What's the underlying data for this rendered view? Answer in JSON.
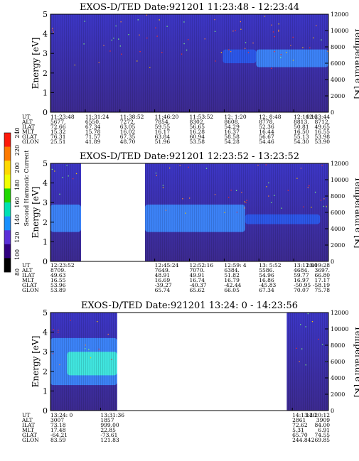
{
  "colors": {
    "background_high": "#3c36c6",
    "background_low": "#3c2a90",
    "band": "#2a5cf0",
    "band_strong": "#3c8cff",
    "band_hot": "#40f0dc",
    "gap": "#ffffff"
  },
  "colorbar": {
    "label": "Second Harmonic Current",
    "ticks": [
      "240",
      "220",
      "200",
      "180",
      "160",
      "140",
      "120",
      "100",
      "80"
    ],
    "colors": [
      "#ff1a0a",
      "#ff7a00",
      "#ffd800",
      "#f0ff00",
      "#20d800",
      "#00e0b4",
      "#1890ff",
      "#5a2fd8",
      "#300080",
      "#000000"
    ]
  },
  "chart_data": [
    {
      "type": "heatmap",
      "title": "EXOS-D/TED   Date:921201   11:23:48 - 12:23:44",
      "ylabel": "Energy [eV]",
      "y2label": "Temperature [K]",
      "ylim": [
        0,
        5
      ],
      "y2lim": [
        0,
        12000
      ],
      "yticks": [
        "0",
        "1",
        "2",
        "3",
        "4",
        "5"
      ],
      "y2ticks": [
        "0",
        "2000",
        "4000",
        "6000",
        "8000",
        "10000",
        "12000"
      ],
      "bands": [
        {
          "x_start": 0.62,
          "x_end": 0.74,
          "y_low": 2.5,
          "y_high": 3.2,
          "level": 1
        },
        {
          "x_start": 0.74,
          "x_end": 1.0,
          "y_low": 2.3,
          "y_high": 3.2,
          "level": 2
        }
      ],
      "gaps": [],
      "table": {
        "labels": [
          "UT",
          "ALT",
          "ILAT",
          "MLT",
          "GLAT",
          "GLON"
        ],
        "columns": [
          {
            "x": 0.0,
            "values": [
              "11:23:48",
              "5677.",
              "72.66",
              "15.32",
              "76.31",
              "25.51"
            ]
          },
          {
            "x": 0.125,
            "values": [
              "11:31:24",
              "6550.",
              "67.34",
              "15.78",
              "71.57",
              "41.89"
            ]
          },
          {
            "x": 0.25,
            "values": [
              "11:38:52",
              "7272.",
              "63.05",
              "16.02",
              "67.35",
              "48.70"
            ]
          },
          {
            "x": 0.375,
            "values": [
              "11:46:20",
              "7854.",
              "59.55",
              "16.17",
              "63.84",
              "51.96"
            ]
          },
          {
            "x": 0.5,
            "values": [
              "11:53:52",
              "8302.",
              "56.65",
              "16.28",
              "60.94",
              "53.58"
            ]
          },
          {
            "x": 0.625,
            "values": [
              "12: 1:20",
              "8608.",
              "54.29",
              "16.37",
              "58.58",
              "54.28"
            ]
          },
          {
            "x": 0.75,
            "values": [
              "12: 8:48",
              "8778.",
              "52.36",
              "16.44",
              "56.67",
              "54.46"
            ]
          },
          {
            "x": 0.875,
            "values": [
              "12:16:16",
              "8813.",
              "50.81",
              "16.50",
              "55.13",
              "54.30"
            ]
          },
          {
            "x": 1.0,
            "values": [
              "12:23:44",
              "8712.",
              "49.65",
              "16.55",
              "53.98",
              "53.90"
            ]
          }
        ]
      }
    },
    {
      "type": "heatmap",
      "title": "EXOS-D/TED   Date:921201   12:23:52 - 13:23:52",
      "ylabel": "Energy [eV]",
      "y2label": "Temperature [K]",
      "ylim": [
        0,
        5
      ],
      "y2lim": [
        0,
        12000
      ],
      "yticks": [
        "0",
        "1",
        "2",
        "3",
        "4",
        "5"
      ],
      "y2ticks": [
        "0",
        "2000",
        "4000",
        "6000",
        "8000",
        "10000",
        "12000"
      ],
      "bands": [
        {
          "x_start": 0.0,
          "x_end": 0.11,
          "y_low": 1.5,
          "y_high": 2.9,
          "level": 2
        },
        {
          "x_start": 0.34,
          "x_end": 0.7,
          "y_low": 1.5,
          "y_high": 2.9,
          "level": 2
        },
        {
          "x_start": 0.7,
          "x_end": 0.97,
          "y_low": 1.9,
          "y_high": 2.4,
          "level": 1
        }
      ],
      "gaps": [
        {
          "x_start": 0.11,
          "x_end": 0.34
        }
      ],
      "table": {
        "labels": [
          "UT",
          "ALT",
          "ILAT",
          "MLT",
          "GLAT",
          "GLON"
        ],
        "columns": [
          {
            "x": 0.0,
            "values": [
              "12:23:52",
              "8709.",
              "49.63",
              "16.55",
              "53.96",
              "53.89"
            ]
          },
          {
            "x": 0.375,
            "values": [
              "12:45:24",
              "7649.",
              "48.91",
              "16.69",
              "-39.27",
              "65.74"
            ]
          },
          {
            "x": 0.5,
            "values": [
              "12:52:16",
              "7070.",
              "49.91",
              "16.74",
              "-40.37",
              "65.62"
            ]
          },
          {
            "x": 0.625,
            "values": [
              "12:59: 4",
              "6384.",
              "51.82",
              "16.79",
              "-42.44",
              "66.05"
            ]
          },
          {
            "x": 0.75,
            "values": [
              "13: 5:52",
              "5586.",
              "54.96",
              "16.86",
              "-45.83",
              "67.34"
            ]
          },
          {
            "x": 0.875,
            "values": [
              "13:12:40",
              "4684.",
              "59.77",
              "16.97",
              "-50.95",
              "70.07"
            ]
          },
          {
            "x": 1.0,
            "values": [
              "13:19:28",
              "3697.",
              "66.80",
              "17.17",
              "-58.19",
              "75.78"
            ]
          }
        ]
      }
    },
    {
      "type": "heatmap",
      "title": "EXOS-D/TED   Date:921201   13:24: 0 - 14:23:56",
      "ylabel": "Energy [eV]",
      "y2label": "Temperature [K]",
      "ylim": [
        0,
        5
      ],
      "y2lim": [
        0,
        12000
      ],
      "yticks": [
        "0",
        "1",
        "2",
        "3",
        "4",
        "5"
      ],
      "y2ticks": [
        "0",
        "2000",
        "4000",
        "6000",
        "8000",
        "10000",
        "12000"
      ],
      "bands": [
        {
          "x_start": 0.0,
          "x_end": 0.24,
          "y_low": 1.3,
          "y_high": 3.7,
          "level": 2
        },
        {
          "x_start": 0.06,
          "x_end": 0.24,
          "y_low": 1.8,
          "y_high": 3.0,
          "level": 3
        }
      ],
      "gaps": [
        {
          "x_start": 0.24,
          "x_end": 0.85
        }
      ],
      "table": {
        "labels": [
          "UT",
          "ALT",
          "ILAT",
          "MLT",
          "GLAT",
          "GLON"
        ],
        "columns": [
          {
            "x": 0.0,
            "values": [
              "13:24: 0",
              "3007",
              "73.18",
              "17.48",
              "-64.21",
              "83.59"
            ]
          },
          {
            "x": 0.18,
            "values": [
              "13:31:36",
              "1857",
              "999.00",
              "22.85",
              "-73.61",
              "121.83"
            ]
          },
          {
            "x": 0.87,
            "values": [
              "14:13:20",
              "2861",
              "72.62",
              "5.31",
              "65.70",
              "244.84"
            ]
          },
          {
            "x": 1.0,
            "values": [
              "14:20:12",
              "3909",
              "84.00",
              "6.91",
              "74.55",
              "269.85"
            ]
          }
        ]
      }
    }
  ]
}
